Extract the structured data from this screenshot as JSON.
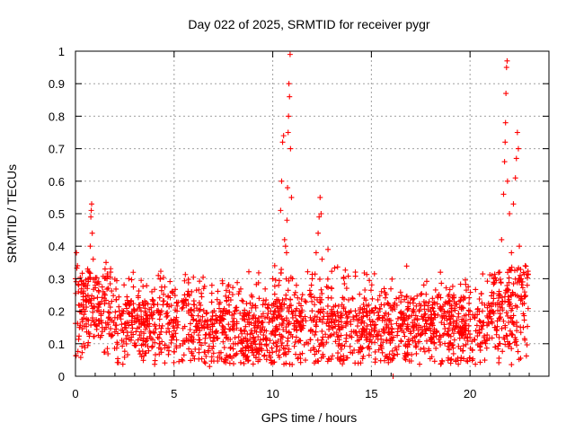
{
  "chart_data": {
    "type": "scatter",
    "title": "Day 022 of 2025, SRMTID for receiver pygr",
    "xlabel": "GPS time / hours",
    "ylabel": "SRMTID / TECUs",
    "xlim": [
      0,
      24
    ],
    "ylim": [
      0,
      1
    ],
    "x_ticks": [
      0,
      5,
      10,
      15,
      20
    ],
    "y_ticks": [
      0,
      0.1,
      0.2,
      0.3,
      0.4,
      0.5,
      0.6,
      0.7,
      0.8,
      0.9,
      1
    ],
    "x_tick_labels": [
      "0",
      "5",
      "10",
      "15",
      "20"
    ],
    "y_tick_labels": [
      "0",
      "0.1",
      "0.2",
      "0.3",
      "0.4",
      "0.5",
      "0.6",
      "0.7",
      "0.8",
      "0.9",
      "1"
    ],
    "grid": true,
    "marker": "+",
    "color": "#ff0000",
    "series": [
      {
        "name": "SRMTID",
        "note": "representative sampled points; background cloud of ~0.05-0.3 TECU generated deterministically",
        "points": [
          [
            0.0,
            0.3
          ],
          [
            0.05,
            0.38
          ],
          [
            0.1,
            0.34
          ],
          [
            0.15,
            0.26
          ],
          [
            0.2,
            0.15
          ],
          [
            0.3,
            0.22
          ],
          [
            0.4,
            0.28
          ],
          [
            0.5,
            0.2
          ],
          [
            0.6,
            0.27
          ],
          [
            0.7,
            0.32
          ],
          [
            0.75,
            0.4
          ],
          [
            0.78,
            0.49
          ],
          [
            0.8,
            0.51
          ],
          [
            0.82,
            0.53
          ],
          [
            0.85,
            0.44
          ],
          [
            0.9,
            0.36
          ],
          [
            1.0,
            0.28
          ],
          [
            1.2,
            0.22
          ],
          [
            1.4,
            0.26
          ],
          [
            1.5,
            0.33
          ],
          [
            1.55,
            0.35
          ],
          [
            1.6,
            0.3
          ],
          [
            2.0,
            0.18
          ],
          [
            2.5,
            0.15
          ],
          [
            3.0,
            0.2
          ],
          [
            4.0,
            0.22
          ],
          [
            4.2,
            0.31
          ],
          [
            4.3,
            0.3
          ],
          [
            5.0,
            0.14
          ],
          [
            6.0,
            0.22
          ],
          [
            6.5,
            0.27
          ],
          [
            6.8,
            0.03
          ],
          [
            7.0,
            0.12
          ],
          [
            8.0,
            0.1
          ],
          [
            8.3,
            0.26
          ],
          [
            8.5,
            0.07
          ],
          [
            9.0,
            0.08
          ],
          [
            9.5,
            0.22
          ],
          [
            10.0,
            0.3
          ],
          [
            10.1,
            0.34
          ],
          [
            10.3,
            0.28
          ],
          [
            10.4,
            0.51
          ],
          [
            10.45,
            0.6
          ],
          [
            10.5,
            0.72
          ],
          [
            10.55,
            0.74
          ],
          [
            10.6,
            0.42
          ],
          [
            10.65,
            0.4
          ],
          [
            10.7,
            0.38
          ],
          [
            10.72,
            0.48
          ],
          [
            10.75,
            0.58
          ],
          [
            10.78,
            0.75
          ],
          [
            10.8,
            0.8
          ],
          [
            10.82,
            0.9
          ],
          [
            10.85,
            0.86
          ],
          [
            10.88,
            0.99
          ],
          [
            10.9,
            0.7
          ],
          [
            10.95,
            0.55
          ],
          [
            11.0,
            0.3
          ],
          [
            11.2,
            0.28
          ],
          [
            11.5,
            0.07
          ],
          [
            11.8,
            0.1
          ],
          [
            12.0,
            0.3
          ],
          [
            12.2,
            0.38
          ],
          [
            12.3,
            0.44
          ],
          [
            12.35,
            0.49
          ],
          [
            12.4,
            0.55
          ],
          [
            12.45,
            0.5
          ],
          [
            12.5,
            0.36
          ],
          [
            12.8,
            0.39
          ],
          [
            13.0,
            0.2
          ],
          [
            13.5,
            0.15
          ],
          [
            14.0,
            0.12
          ],
          [
            14.5,
            0.18
          ],
          [
            15.0,
            0.2
          ],
          [
            15.5,
            0.22
          ],
          [
            16.0,
            0.16
          ],
          [
            16.1,
            0.0
          ],
          [
            16.5,
            0.18
          ],
          [
            17.0,
            0.24
          ],
          [
            17.5,
            0.15
          ],
          [
            18.0,
            0.14
          ],
          [
            18.5,
            0.32
          ],
          [
            18.7,
            0.2
          ],
          [
            19.0,
            0.1
          ],
          [
            19.5,
            0.14
          ],
          [
            20.0,
            0.2
          ],
          [
            20.5,
            0.09
          ],
          [
            21.0,
            0.2
          ],
          [
            21.3,
            0.22
          ],
          [
            21.5,
            0.32
          ],
          [
            21.6,
            0.42
          ],
          [
            21.7,
            0.56
          ],
          [
            21.75,
            0.66
          ],
          [
            21.78,
            0.72
          ],
          [
            21.8,
            0.78
          ],
          [
            21.82,
            0.87
          ],
          [
            21.85,
            0.95
          ],
          [
            21.88,
            0.97
          ],
          [
            21.9,
            0.6
          ],
          [
            22.0,
            0.5
          ],
          [
            22.1,
            0.38
          ],
          [
            22.2,
            0.53
          ],
          [
            22.3,
            0.61
          ],
          [
            22.35,
            0.67
          ],
          [
            22.4,
            0.75
          ],
          [
            22.45,
            0.7
          ],
          [
            22.5,
            0.4
          ],
          [
            22.6,
            0.3
          ],
          [
            22.7,
            0.15
          ],
          [
            22.8,
            0.34
          ],
          [
            22.9,
            0.28
          ]
        ]
      }
    ]
  }
}
